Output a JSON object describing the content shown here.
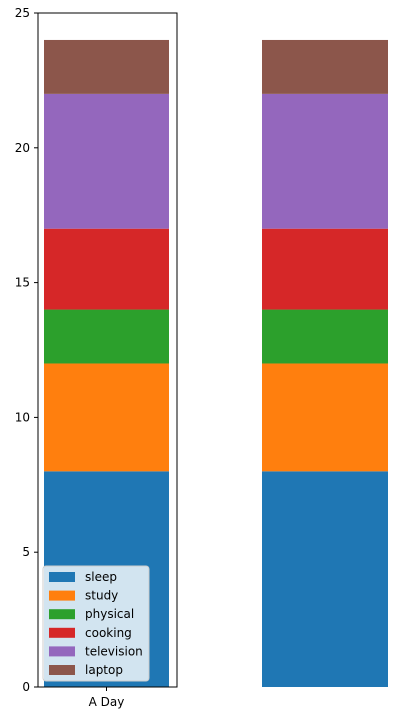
{
  "chart_data": {
    "type": "bar",
    "stacked": true,
    "categories": [
      "A Day"
    ],
    "ylim": [
      0,
      25
    ],
    "yticks": [
      0,
      5,
      10,
      15,
      20,
      25
    ],
    "xlabel": "",
    "ylabel": "",
    "title": "",
    "legend": "lower-left",
    "series": [
      {
        "name": "sleep",
        "values": [
          8
        ],
        "color": "#1f77b4"
      },
      {
        "name": "study",
        "values": [
          4
        ],
        "color": "#ff7f0e"
      },
      {
        "name": "physical",
        "values": [
          2
        ],
        "color": "#2ca02c"
      },
      {
        "name": "cooking",
        "values": [
          3
        ],
        "color": "#d62728"
      },
      {
        "name": "television",
        "values": [
          5
        ],
        "color": "#9467bd"
      },
      {
        "name": "laptop",
        "values": [
          2
        ],
        "color": "#8c564b"
      }
    ]
  }
}
